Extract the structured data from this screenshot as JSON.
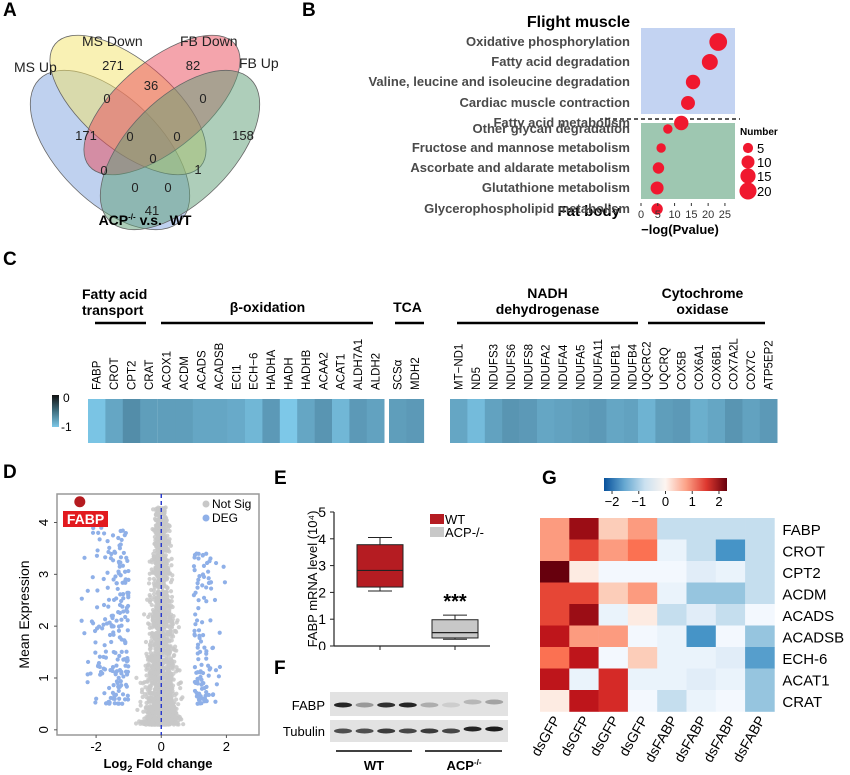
{
  "panels": {
    "A": {
      "letter": "A",
      "title_main": "ACP",
      "title_sup": "-/-",
      "title_rest": " v.s.  WT",
      "sets": [
        {
          "name": "MS Up",
          "color": "#7fa3e0"
        },
        {
          "name": "MS Down",
          "color": "#f3e36a"
        },
        {
          "name": "FB Down",
          "color": "#ea4a5a"
        },
        {
          "name": "FB Up",
          "color": "#5e9e76"
        }
      ],
      "regions": [
        {
          "label": "MS Up only",
          "value": "171"
        },
        {
          "label": "MS Down only",
          "value": "271"
        },
        {
          "label": "FB Down only",
          "value": "82"
        },
        {
          "label": "FB Up only",
          "value": "158"
        },
        {
          "label": "MS Up & MS Down",
          "value": "0"
        },
        {
          "label": "MS Down & FB Down",
          "value": "36"
        },
        {
          "label": "FB Down & FB Up",
          "value": "0"
        },
        {
          "label": "MS Up & FB Down",
          "value": "0"
        },
        {
          "label": "MS Down & FB Up",
          "value": "1"
        },
        {
          "label": "MS Up & FB Up",
          "value": "41"
        },
        {
          "label": "MS Up & MS Down & FB Down",
          "value": "0"
        },
        {
          "label": "MS Down & FB Down & FB Up",
          "value": "0"
        },
        {
          "label": "MS Up & FB Down & FB Up",
          "value": "0"
        },
        {
          "label": "MS Up & MS Down & FB Up",
          "value": "0"
        },
        {
          "label": "All four",
          "value": "0"
        }
      ]
    },
    "B": {
      "letter": "B",
      "group1_title": "Flight muscle",
      "group2_title": "Fat body",
      "xlabel": "−log(Pvalue)",
      "xticks": [
        "0",
        "5",
        "10",
        "15",
        "20",
        "25"
      ],
      "legend_title": "Number",
      "legend_sizes": [
        "5",
        "10",
        "15",
        "20"
      ],
      "group1_bg": "#c3d3f2",
      "group2_bg": "#9ec7b1",
      "dot_color": "#f0182f"
    },
    "C": {
      "letter": "C",
      "colorbar_max": "0",
      "colorbar_min": "-1",
      "groups": [
        {
          "title_line1": "Fatty acid",
          "title_line2": "transport"
        },
        {
          "title_line1": "β-oxidation",
          "title_line2": ""
        },
        {
          "title_line1": "TCA",
          "title_line2": ""
        },
        {
          "title_line1": "NADH",
          "title_line2": "dehydrogenase"
        },
        {
          "title_line1": "Cytochrome",
          "title_line2": "oxidase"
        }
      ]
    },
    "D": {
      "letter": "D",
      "xlabel": "Log",
      "xlabel_sub": "2",
      "xlabel_rest": " Fold change",
      "ylabel": "Mean Expression",
      "xticks": [
        "-2",
        "0",
        "2"
      ],
      "yticks": [
        "0",
        "1",
        "2",
        "3",
        "4"
      ],
      "legend": [
        {
          "name": "Not Sig",
          "color": "#c8c8c8"
        },
        {
          "name": "DEG",
          "color": "#8fb0e8"
        }
      ],
      "highlight_label": "FABP",
      "highlight_color": "#b51c20"
    },
    "E": {
      "letter": "E",
      "ylabel": "FABP mRNA level (10⁴)",
      "yticks": [
        "0",
        "1",
        "2",
        "3",
        "4",
        "5"
      ],
      "legend": [
        {
          "name": "WT",
          "color": "#b51c22"
        },
        {
          "name": "ACP-/-",
          "color": "#c8c8c8"
        }
      ],
      "significance": "***"
    },
    "F": {
      "letter": "F",
      "bands": [
        "FABP",
        "Tubulin"
      ],
      "groups": [
        {
          "label": "WT"
        },
        {
          "label": "ACP",
          "sup": "-/-"
        }
      ]
    },
    "G": {
      "letter": "G",
      "colorbar_ticks": [
        "-2",
        "-1",
        "0",
        "1",
        "2"
      ]
    }
  },
  "chart_data": [
    {
      "id": "B",
      "type": "scatter",
      "title": "",
      "xlabel": "−log(Pvalue)",
      "xlim": [
        0,
        28
      ],
      "xticks": [
        0,
        5,
        10,
        15,
        20,
        25
      ],
      "size_legend": {
        "title": "Number",
        "values": [
          5,
          10,
          15,
          20
        ]
      },
      "groups": [
        {
          "name": "Flight muscle",
          "points": [
            {
              "term": "Oxidative phosphorylation",
              "x": 23,
              "number": 22
            },
            {
              "term": "Fatty acid degradation",
              "x": 20.5,
              "number": 17
            },
            {
              "term": "Valine, leucine and isoleucine degradation",
              "x": 15.5,
              "number": 13
            },
            {
              "term": "Cardiac muscle contraction",
              "x": 14,
              "number": 12
            },
            {
              "term": "Fatty acid metabolism",
              "x": 12,
              "number": 13
            }
          ]
        },
        {
          "name": "Fat body",
          "points": [
            {
              "term": "Other glycan degradation",
              "x": 8,
              "number": 4
            },
            {
              "term": "Fructose and mannose metabolism",
              "x": 6,
              "number": 4
            },
            {
              "term": "Ascorbate and aldarate metabolism",
              "x": 5.2,
              "number": 7
            },
            {
              "term": "Glutathione metabolism",
              "x": 4.8,
              "number": 10
            },
            {
              "term": "Glycerophospholipid metabolism",
              "x": 4.8,
              "number": 7
            }
          ]
        }
      ]
    },
    {
      "id": "C",
      "type": "heatmap",
      "color_range": [
        -1,
        0
      ],
      "groups": [
        {
          "name": "Fatty acid transport",
          "genes": [
            "FABP",
            "CROT",
            "CPT2",
            "CRAT"
          ],
          "values": [
            -0.95,
            -0.6,
            -0.3,
            -0.5
          ]
        },
        {
          "name": "β-oxidation",
          "genes": [
            "ACOX1",
            "ACDM",
            "ACADS",
            "ACADSB",
            "ECI1",
            "ECH−6",
            "HADHA",
            "HADH",
            "HADHB",
            "ACAA2",
            "ACAT1",
            "ALDH7A1",
            "ALDH2"
          ],
          "values": [
            -0.5,
            -0.5,
            -0.6,
            -0.6,
            -0.65,
            -0.8,
            -0.45,
            -1.0,
            -0.6,
            -0.4,
            -0.8,
            -0.45,
            -0.55
          ]
        },
        {
          "name": "TCA",
          "genes": [
            "SCSα",
            "MDH2"
          ],
          "values": [
            -0.5,
            -0.45
          ]
        },
        {
          "name": "NADH dehydrogenase",
          "genes": [
            "MT−ND1",
            "ND5",
            "NDUFS3",
            "NDUFS6",
            "NDUFS8",
            "NDUFA2",
            "NDUFA4",
            "NDUFA5",
            "NDUFA11",
            "NDUFB1",
            "NDUFB4"
          ],
          "values": [
            -0.6,
            -0.85,
            -0.55,
            -0.4,
            -0.45,
            -0.6,
            -0.55,
            -0.5,
            -0.45,
            -0.6,
            -0.55
          ]
        },
        {
          "name": "Cytochrome oxidase",
          "genes": [
            "UQCRC2",
            "UQCRQ",
            "COX5B",
            "COX6A1",
            "COX6B1",
            "COX7A2L",
            "COX7C",
            "ATP5EP2"
          ],
          "values": [
            -0.75,
            -0.5,
            -0.45,
            -0.7,
            -0.6,
            -0.4,
            -0.55,
            -0.45
          ]
        }
      ]
    },
    {
      "id": "D",
      "type": "scatter",
      "xlabel": "Log2 Fold change",
      "ylabel": "Mean Expression",
      "xlim": [
        -3.2,
        3.0
      ],
      "ylim": [
        -0.1,
        4.55
      ],
      "xticks": [
        -2,
        0,
        2
      ],
      "yticks": [
        0,
        1,
        2,
        3,
        4
      ],
      "series": [
        {
          "name": "Not Sig",
          "description": "dense cloud centered at x=0, |log2FC| < ~1, expression 0.1–4.4"
        },
        {
          "name": "DEG",
          "description": "points with |log2FC| > ~1, expression 0.5–4"
        }
      ],
      "annotations": [
        {
          "text": "FABP",
          "x": -2.5,
          "y": 4.4
        }
      ],
      "reference_line": {
        "x": 0,
        "style": "dashed",
        "color": "#2233cc"
      }
    },
    {
      "id": "E",
      "type": "box",
      "ylabel": "FABP mRNA level (10^4)",
      "ylim": [
        0,
        5
      ],
      "yticks": [
        0,
        1,
        2,
        3,
        4,
        5
      ],
      "series": [
        {
          "name": "WT",
          "min": 2.05,
          "q1": 2.2,
          "median": 2.82,
          "q3": 3.78,
          "max": 4.05
        },
        {
          "name": "ACP-/-",
          "min": 0.25,
          "q1": 0.3,
          "median": 0.5,
          "q3": 0.98,
          "max": 1.15
        }
      ],
      "annotations": [
        {
          "text": "***",
          "group": "ACP-/-"
        }
      ]
    },
    {
      "id": "F",
      "type": "table",
      "description": "Western blot",
      "rows": [
        "FABP",
        "Tubulin"
      ],
      "lanes": [
        "WT",
        "WT",
        "WT",
        "WT",
        "ACP-/-",
        "ACP-/-",
        "ACP-/-",
        "ACP-/-"
      ],
      "band_intensity": {
        "FABP": [
          0.9,
          0.35,
          0.85,
          0.9,
          0.25,
          0.1,
          0.2,
          0.3
        ],
        "Tubulin": [
          0.7,
          0.7,
          0.8,
          0.75,
          0.8,
          0.75,
          0.9,
          0.95
        ]
      }
    },
    {
      "id": "G",
      "type": "heatmap",
      "color_range": [
        -2.3,
        2.3
      ],
      "colorbar_ticks": [
        -2,
        -1,
        0,
        1,
        2
      ],
      "columns": [
        "dsGFP",
        "dsGFP",
        "dsGFP",
        "dsGFP",
        "dsFABP",
        "dsFABP",
        "dsFABP",
        "dsFABP"
      ],
      "rows": [
        "FABP",
        "CROT",
        "CPT2",
        "ACDM",
        "ACADS",
        "ACADSB",
        "ECH-6",
        "ACAT1",
        "CRAT"
      ],
      "values": [
        [
          0.8,
          2.0,
          0.4,
          0.8,
          -0.8,
          -0.8,
          -0.8,
          -0.8
        ],
        [
          0.8,
          1.4,
          0.8,
          1.1,
          -0.3,
          -0.8,
          -1.7,
          -0.8
        ],
        [
          2.4,
          0.1,
          -0.1,
          -0.1,
          -0.1,
          -0.5,
          -0.3,
          -0.8
        ],
        [
          1.4,
          1.4,
          0.4,
          0.8,
          -0.3,
          -1.2,
          -1.2,
          -0.8
        ],
        [
          1.4,
          2.0,
          -0.3,
          0.1,
          -0.8,
          -0.5,
          -0.8,
          -0.1
        ],
        [
          1.8,
          0.8,
          0.8,
          -0.1,
          -0.3,
          -1.7,
          -0.1,
          -1.2
        ],
        [
          1.1,
          1.8,
          -0.1,
          0.4,
          -0.3,
          -0.3,
          -0.5,
          -1.6
        ],
        [
          1.8,
          -0.3,
          1.6,
          -0.3,
          -0.3,
          -0.5,
          -0.3,
          -1.2
        ],
        [
          0.1,
          1.8,
          1.6,
          -0.1,
          -0.8,
          -0.3,
          -0.1,
          -1.2
        ]
      ]
    }
  ]
}
